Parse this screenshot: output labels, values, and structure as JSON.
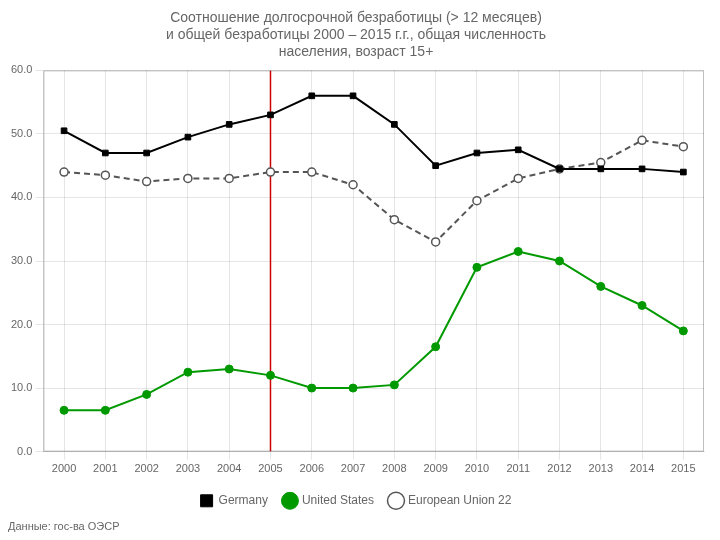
{
  "chart_data": {
    "type": "line",
    "title": "Соотношение долгосрочной безработицы (> 12 месяцев)\nи общей безработицы 2000 – 2015 г.г., общая численность\nнаселения, возраст 15+",
    "footnote": "Данные: гос-ва ОЭСР",
    "x": [
      2000,
      2001,
      2002,
      2003,
      2004,
      2005,
      2006,
      2007,
      2008,
      2009,
      2010,
      2011,
      2012,
      2013,
      2014,
      2015
    ],
    "series": [
      {
        "name": "Germany",
        "color": "#000000",
        "marker": "square",
        "line_style": "solid",
        "values": [
          50.5,
          47.0,
          47.0,
          49.5,
          51.5,
          53.0,
          56.0,
          56.0,
          51.5,
          45.0,
          47.0,
          47.5,
          44.5,
          44.5,
          44.5,
          44.0
        ]
      },
      {
        "name": "United States",
        "color": "#009900",
        "marker": "circle",
        "line_style": "solid",
        "values": [
          6.5,
          6.5,
          9.0,
          12.5,
          13.0,
          12.0,
          10.0,
          10.0,
          10.5,
          16.5,
          29.0,
          31.5,
          30.0,
          26.0,
          23.0,
          19.0
        ]
      },
      {
        "name": "European Union 22",
        "color": "#555555",
        "marker": "open_circle",
        "line_style": "dashed",
        "values": [
          44.0,
          43.5,
          42.5,
          43.0,
          43.0,
          44.0,
          44.0,
          42.0,
          36.5,
          33.0,
          39.5,
          43.0,
          44.5,
          45.5,
          49.0,
          48.0
        ]
      }
    ],
    "vlines": [
      {
        "x": 2005,
        "color": "#cc0000"
      }
    ],
    "xlim": [
      1999.5,
      2015.5
    ],
    "xticks": [
      2000,
      2001,
      2002,
      2003,
      2004,
      2005,
      2006,
      2007,
      2008,
      2009,
      2010,
      2011,
      2012,
      2013,
      2014,
      2015
    ],
    "ylim": [
      0.0,
      60.0
    ],
    "yticks": [
      {
        "value": 0,
        "label": "0.0"
      },
      {
        "value": 10,
        "label": "10.0"
      },
      {
        "value": 20,
        "label": "20.0"
      },
      {
        "value": 30,
        "label": "30.0"
      },
      {
        "value": 40,
        "label": "40.0"
      },
      {
        "value": 50,
        "label": "50.0"
      },
      {
        "value": 60,
        "label": "60.0"
      }
    ],
    "grid": true,
    "legend": "bottom"
  }
}
